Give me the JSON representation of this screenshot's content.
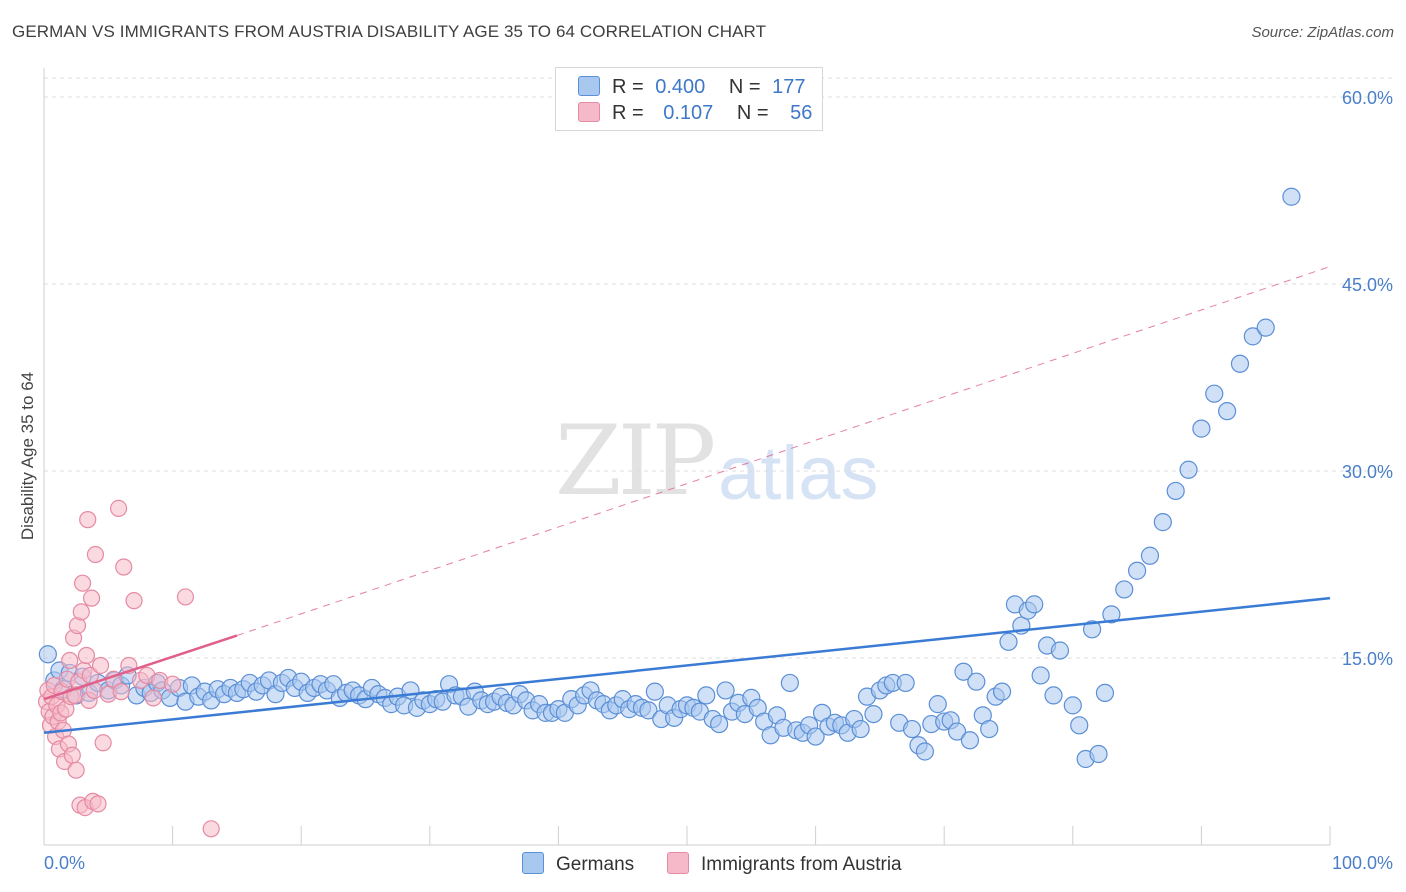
{
  "title": "GERMAN VS IMMIGRANTS FROM AUSTRIA DISABILITY AGE 35 TO 64 CORRELATION CHART",
  "source": "Source: ZipAtlas.com",
  "watermark": {
    "zip": "ZIP",
    "atlas": "atlas"
  },
  "legend": {
    "rows": [
      {
        "r_label": "R =",
        "r_value": "0.400",
        "n_label": "N =",
        "n_value": "177",
        "color": "#a9c8f0"
      },
      {
        "r_label": "R =",
        "r_value": "0.107",
        "n_label": "N =",
        "n_value": "56",
        "color": "#f6b9c9"
      }
    ]
  },
  "bottom_legend": {
    "germans": "Germans",
    "austria": "Immigrants from Austria"
  },
  "chart_data": {
    "type": "scatter",
    "ylabel": "Disability Age 35 to 64",
    "xlabel": "",
    "xlim": [
      0,
      100
    ],
    "ylim": [
      0,
      60
    ],
    "x_tick_labels": [
      "0.0%",
      "100.0%"
    ],
    "y_ticks": [
      15,
      30,
      45,
      60
    ],
    "y_tick_labels": [
      "15.0%",
      "30.0%",
      "45.0%",
      "60.0%"
    ],
    "grid": true,
    "colors": {
      "germans_fill": "#a9c8f0",
      "germans_stroke": "#5b8fd6",
      "germans_line": "#3a7bd5",
      "austria_fill": "#f6b9c9",
      "austria_stroke": "#e58aa3",
      "austria_line": "#e0608a"
    },
    "series": [
      {
        "name": "Germans",
        "trend": {
          "x": [
            0,
            100
          ],
          "y": [
            9.0,
            19.8
          ],
          "style": "solid"
        },
        "points": [
          [
            0.3,
            15.3
          ],
          [
            0.8,
            13.2
          ],
          [
            1.2,
            14.0
          ],
          [
            1.5,
            12.5
          ],
          [
            2.0,
            13.8
          ],
          [
            2.5,
            12.0
          ],
          [
            3.0,
            13.5
          ],
          [
            3.5,
            12.2
          ],
          [
            4.2,
            13.0
          ],
          [
            5.0,
            12.4
          ],
          [
            5.5,
            13.2
          ],
          [
            6.0,
            12.8
          ],
          [
            6.5,
            13.6
          ],
          [
            7.2,
            12.0
          ],
          [
            7.8,
            12.6
          ],
          [
            8.3,
            12.2
          ],
          [
            8.8,
            13.0
          ],
          [
            9.2,
            12.4
          ],
          [
            9.8,
            11.8
          ],
          [
            10.5,
            12.6
          ],
          [
            11.0,
            11.5
          ],
          [
            11.5,
            12.8
          ],
          [
            12.0,
            11.9
          ],
          [
            12.5,
            12.3
          ],
          [
            13.0,
            11.6
          ],
          [
            13.5,
            12.5
          ],
          [
            14.0,
            12.1
          ],
          [
            14.5,
            12.6
          ],
          [
            15.0,
            12.2
          ],
          [
            15.5,
            12.5
          ],
          [
            16.0,
            13.0
          ],
          [
            16.5,
            12.3
          ],
          [
            17.0,
            12.8
          ],
          [
            17.5,
            13.2
          ],
          [
            18.0,
            12.1
          ],
          [
            18.5,
            13.0
          ],
          [
            19.0,
            13.4
          ],
          [
            19.5,
            12.6
          ],
          [
            20.0,
            13.1
          ],
          [
            20.5,
            12.2
          ],
          [
            21.0,
            12.6
          ],
          [
            21.5,
            12.9
          ],
          [
            22.0,
            12.4
          ],
          [
            22.5,
            12.9
          ],
          [
            23.0,
            11.8
          ],
          [
            23.5,
            12.2
          ],
          [
            24.0,
            12.4
          ],
          [
            24.5,
            12.0
          ],
          [
            25.0,
            11.7
          ],
          [
            25.5,
            12.6
          ],
          [
            26.0,
            12.1
          ],
          [
            26.5,
            11.8
          ],
          [
            27.0,
            11.3
          ],
          [
            27.5,
            11.9
          ],
          [
            28.0,
            11.2
          ],
          [
            28.5,
            12.4
          ],
          [
            29.0,
            11.0
          ],
          [
            29.5,
            11.6
          ],
          [
            30.0,
            11.3
          ],
          [
            30.5,
            11.7
          ],
          [
            31.0,
            11.5
          ],
          [
            31.5,
            12.9
          ],
          [
            32.0,
            12.0
          ],
          [
            32.5,
            11.9
          ],
          [
            33.0,
            11.1
          ],
          [
            33.5,
            12.3
          ],
          [
            34.0,
            11.6
          ],
          [
            34.5,
            11.3
          ],
          [
            35.0,
            11.5
          ],
          [
            35.5,
            11.9
          ],
          [
            36.0,
            11.4
          ],
          [
            36.5,
            11.2
          ],
          [
            37.0,
            12.1
          ],
          [
            37.5,
            11.6
          ],
          [
            38.0,
            10.8
          ],
          [
            38.5,
            11.3
          ],
          [
            39.0,
            10.6
          ],
          [
            39.5,
            10.6
          ],
          [
            40.0,
            10.9
          ],
          [
            40.5,
            10.6
          ],
          [
            41.0,
            11.7
          ],
          [
            41.5,
            11.2
          ],
          [
            42.0,
            12.0
          ],
          [
            42.5,
            12.4
          ],
          [
            43.0,
            11.6
          ],
          [
            43.5,
            11.3
          ],
          [
            44.0,
            10.8
          ],
          [
            44.5,
            11.2
          ],
          [
            45.0,
            11.7
          ],
          [
            45.5,
            10.9
          ],
          [
            46.0,
            11.3
          ],
          [
            46.5,
            11.0
          ],
          [
            47.0,
            10.8
          ],
          [
            47.5,
            12.3
          ],
          [
            48.0,
            10.1
          ],
          [
            48.5,
            11.2
          ],
          [
            49.0,
            10.2
          ],
          [
            49.5,
            10.9
          ],
          [
            50.0,
            11.2
          ],
          [
            50.5,
            11.0
          ],
          [
            51.0,
            10.7
          ],
          [
            51.5,
            12.0
          ],
          [
            52.0,
            10.1
          ],
          [
            52.5,
            9.7
          ],
          [
            53.0,
            12.4
          ],
          [
            53.5,
            10.7
          ],
          [
            54.0,
            11.4
          ],
          [
            54.5,
            10.5
          ],
          [
            55.0,
            11.8
          ],
          [
            55.5,
            11.0
          ],
          [
            56.0,
            9.9
          ],
          [
            56.5,
            8.8
          ],
          [
            57.0,
            10.4
          ],
          [
            57.5,
            9.4
          ],
          [
            58.0,
            13.0
          ],
          [
            58.5,
            9.2
          ],
          [
            59.0,
            9.0
          ],
          [
            59.5,
            9.6
          ],
          [
            60.0,
            8.7
          ],
          [
            60.5,
            10.6
          ],
          [
            61.0,
            9.5
          ],
          [
            61.5,
            9.8
          ],
          [
            62.0,
            9.6
          ],
          [
            62.5,
            9.0
          ],
          [
            63.0,
            10.1
          ],
          [
            63.5,
            9.3
          ],
          [
            64.0,
            11.9
          ],
          [
            64.5,
            10.5
          ],
          [
            65.0,
            12.4
          ],
          [
            65.5,
            12.8
          ],
          [
            66.0,
            13.0
          ],
          [
            66.5,
            9.8
          ],
          [
            67.0,
            13.0
          ],
          [
            67.5,
            9.3
          ],
          [
            68.0,
            8.0
          ],
          [
            68.5,
            7.5
          ],
          [
            69.0,
            9.7
          ],
          [
            69.5,
            11.3
          ],
          [
            70.0,
            9.9
          ],
          [
            70.5,
            10.0
          ],
          [
            71.0,
            9.1
          ],
          [
            71.5,
            13.9
          ],
          [
            72.0,
            8.4
          ],
          [
            72.5,
            13.1
          ],
          [
            73.0,
            10.4
          ],
          [
            73.5,
            9.3
          ],
          [
            74.0,
            11.9
          ],
          [
            74.5,
            12.3
          ],
          [
            75.0,
            16.3
          ],
          [
            75.5,
            19.3
          ],
          [
            76.0,
            17.6
          ],
          [
            76.5,
            18.8
          ],
          [
            77.0,
            19.3
          ],
          [
            77.5,
            13.6
          ],
          [
            78.0,
            16.0
          ],
          [
            78.5,
            12.0
          ],
          [
            79.0,
            15.6
          ],
          [
            80.0,
            11.2
          ],
          [
            80.5,
            9.6
          ],
          [
            81.0,
            6.9
          ],
          [
            81.5,
            17.3
          ],
          [
            82.0,
            7.3
          ],
          [
            82.5,
            12.2
          ],
          [
            83.0,
            18.5
          ],
          [
            84.0,
            20.5
          ],
          [
            85.0,
            22.0
          ],
          [
            86.0,
            23.2
          ],
          [
            87.0,
            25.9
          ],
          [
            88.0,
            28.4
          ],
          [
            89.0,
            30.1
          ],
          [
            90.0,
            33.4
          ],
          [
            91.0,
            36.2
          ],
          [
            92.0,
            34.8
          ],
          [
            93.0,
            38.6
          ],
          [
            94.0,
            40.8
          ],
          [
            95.0,
            41.5
          ],
          [
            97.0,
            52.0
          ]
        ]
      },
      {
        "name": "Immigrants from Austria",
        "trend": {
          "x": [
            0,
            15,
            100
          ],
          "y": [
            11.7,
            16.8,
            46.4
          ],
          "style": "solid-then-dashed"
        },
        "points": [
          [
            0.2,
            11.5
          ],
          [
            0.3,
            12.4
          ],
          [
            0.4,
            10.7
          ],
          [
            0.5,
            9.6
          ],
          [
            0.6,
            11.9
          ],
          [
            0.7,
            10.3
          ],
          [
            0.8,
            12.8
          ],
          [
            0.9,
            8.7
          ],
          [
            1.0,
            11.2
          ],
          [
            1.1,
            9.9
          ],
          [
            1.2,
            7.7
          ],
          [
            1.3,
            10.6
          ],
          [
            1.4,
            12.3
          ],
          [
            1.5,
            9.2
          ],
          [
            1.6,
            6.7
          ],
          [
            1.7,
            10.9
          ],
          [
            1.8,
            13.3
          ],
          [
            1.9,
            8.1
          ],
          [
            2.0,
            14.8
          ],
          [
            2.1,
            11.9
          ],
          [
            2.2,
            7.2
          ],
          [
            2.3,
            16.6
          ],
          [
            2.4,
            12.0
          ],
          [
            2.5,
            6.0
          ],
          [
            2.6,
            17.6
          ],
          [
            2.7,
            13.1
          ],
          [
            2.8,
            3.2
          ],
          [
            2.9,
            18.7
          ],
          [
            3.0,
            21.0
          ],
          [
            3.1,
            14.0
          ],
          [
            3.2,
            3.0
          ],
          [
            3.3,
            15.2
          ],
          [
            3.4,
            26.1
          ],
          [
            3.5,
            11.6
          ],
          [
            3.6,
            13.6
          ],
          [
            3.7,
            19.8
          ],
          [
            3.8,
            3.5
          ],
          [
            3.9,
            12.4
          ],
          [
            4.0,
            23.3
          ],
          [
            4.2,
            3.3
          ],
          [
            4.4,
            14.4
          ],
          [
            4.6,
            8.2
          ],
          [
            5.0,
            12.1
          ],
          [
            5.4,
            13.3
          ],
          [
            5.8,
            27.0
          ],
          [
            6.0,
            12.3
          ],
          [
            6.2,
            22.3
          ],
          [
            6.6,
            14.4
          ],
          [
            7.0,
            19.6
          ],
          [
            7.5,
            13.2
          ],
          [
            8.0,
            13.6
          ],
          [
            8.5,
            11.8
          ],
          [
            9.0,
            13.2
          ],
          [
            10.0,
            12.9
          ],
          [
            11.0,
            19.9
          ],
          [
            13.0,
            1.3
          ]
        ]
      }
    ]
  }
}
